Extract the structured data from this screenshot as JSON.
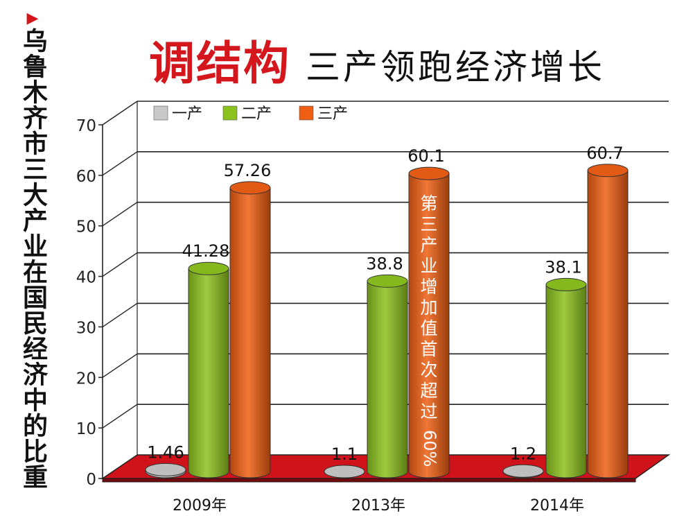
{
  "header": {
    "marker": "▶",
    "side_title": "乌鲁木齐市三大产业在国民经济中的比重",
    "title_highlight": "调结构",
    "title_rest": "三产领跑经济增长"
  },
  "chart_data": {
    "type": "bar",
    "title": "",
    "categories": [
      "2009年",
      "2013年",
      "2014年"
    ],
    "series": [
      {
        "name": "一产",
        "values": [
          1.46,
          1.1,
          1.2
        ],
        "labels": [
          "1.46",
          "1.1",
          "1.2"
        ],
        "color": "#c8c8c8"
      },
      {
        "name": "二产",
        "values": [
          41.28,
          38.8,
          38.1
        ],
        "labels": [
          "41.28",
          "38.8",
          "38.1"
        ],
        "color": "#8cc21e"
      },
      {
        "name": "三产",
        "values": [
          57.26,
          60.1,
          60.7
        ],
        "labels": [
          "57.26",
          "60.1",
          "60.7"
        ],
        "color": "#ee5f14"
      }
    ],
    "ylim": [
      0,
      70
    ],
    "yticks": [
      "0",
      "10",
      "20",
      "30",
      "40",
      "50",
      "60",
      "70"
    ],
    "grid": true,
    "legend": "top-left",
    "floor_color": "#d0121a",
    "annotation": "第三产业增加值首次超过60%"
  }
}
